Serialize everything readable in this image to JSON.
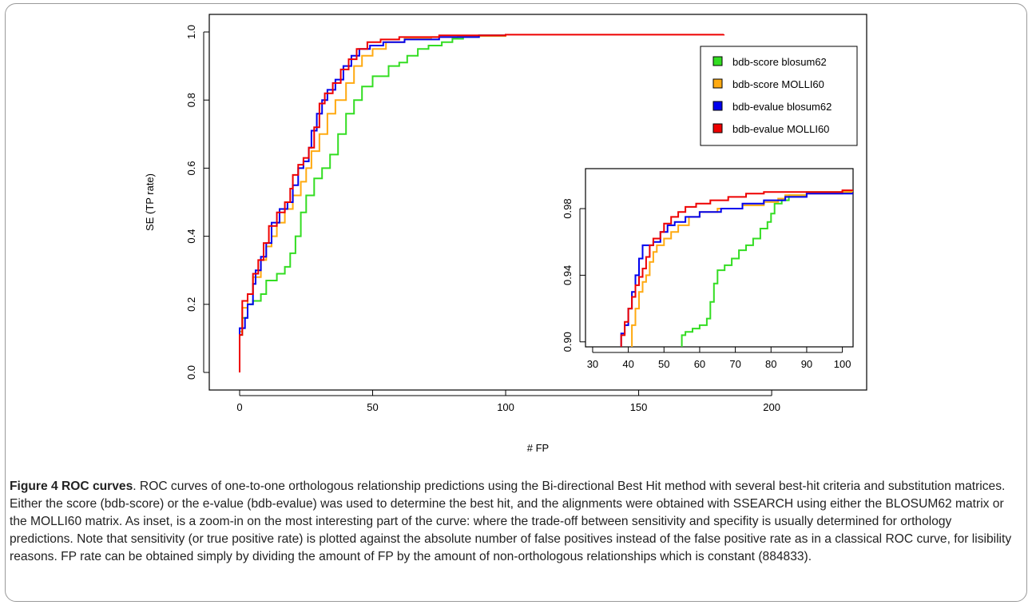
{
  "chart_data": [
    {
      "type": "line",
      "xlabel": "# FP",
      "ylabel": "SE (TP rate)",
      "xlim": [
        0,
        230
      ],
      "ylim": [
        0,
        1
      ],
      "x_ticks": [
        "0",
        "50",
        "100",
        "150",
        "200"
      ],
      "y_ticks": [
        "0.0",
        "0.2",
        "0.4",
        "0.6",
        "0.8",
        "1.0"
      ],
      "legend_position": "top-right",
      "series": [
        {
          "name": "bdb-score blosum62",
          "color": "#33dd22",
          "points": [
            [
              0,
              0
            ],
            [
              0,
              0.11
            ],
            [
              1,
              0.16
            ],
            [
              3,
              0.2
            ],
            [
              5,
              0.21
            ],
            [
              8,
              0.23
            ],
            [
              10,
              0.27
            ],
            [
              14,
              0.29
            ],
            [
              17,
              0.31
            ],
            [
              19,
              0.35
            ],
            [
              21,
              0.4
            ],
            [
              23,
              0.47
            ],
            [
              25,
              0.52
            ],
            [
              28,
              0.57
            ],
            [
              31,
              0.6
            ],
            [
              34,
              0.64
            ],
            [
              37,
              0.7
            ],
            [
              40,
              0.76
            ],
            [
              43,
              0.8
            ],
            [
              46,
              0.84
            ],
            [
              50,
              0.87
            ],
            [
              56,
              0.9
            ],
            [
              60,
              0.91
            ],
            [
              63,
              0.93
            ],
            [
              67,
              0.95
            ],
            [
              71,
              0.96
            ],
            [
              76,
              0.97
            ],
            [
              80,
              0.98
            ],
            [
              84,
              0.985
            ],
            [
              90,
              0.99
            ],
            [
              100,
              0.99
            ]
          ]
        },
        {
          "name": "bdb-score MOLLI60",
          "color": "#ffaa11",
          "points": [
            [
              0,
              0
            ],
            [
              0,
              0.12
            ],
            [
              1,
              0.19
            ],
            [
              3,
              0.23
            ],
            [
              5,
              0.28
            ],
            [
              8,
              0.33
            ],
            [
              10,
              0.37
            ],
            [
              12,
              0.4
            ],
            [
              14,
              0.44
            ],
            [
              17,
              0.48
            ],
            [
              20,
              0.52
            ],
            [
              23,
              0.56
            ],
            [
              25,
              0.6
            ],
            [
              27,
              0.65
            ],
            [
              30,
              0.7
            ],
            [
              33,
              0.76
            ],
            [
              36,
              0.8
            ],
            [
              40,
              0.85
            ],
            [
              43,
              0.9
            ],
            [
              46,
              0.93
            ],
            [
              50,
              0.95
            ],
            [
              55,
              0.97
            ],
            [
              62,
              0.98
            ],
            [
              72,
              0.985
            ],
            [
              82,
              0.988
            ],
            [
              100,
              0.99
            ]
          ]
        },
        {
          "name": "bdb-evalue blosum62",
          "color": "#0000ee",
          "points": [
            [
              0,
              0
            ],
            [
              0,
              0.13
            ],
            [
              2,
              0.16
            ],
            [
              3,
              0.2
            ],
            [
              5,
              0.26
            ],
            [
              6,
              0.3
            ],
            [
              8,
              0.34
            ],
            [
              10,
              0.38
            ],
            [
              12,
              0.44
            ],
            [
              15,
              0.48
            ],
            [
              18,
              0.5
            ],
            [
              20,
              0.55
            ],
            [
              22,
              0.6
            ],
            [
              24,
              0.62
            ],
            [
              26,
              0.66
            ],
            [
              27,
              0.71
            ],
            [
              29,
              0.76
            ],
            [
              31,
              0.8
            ],
            [
              33,
              0.83
            ],
            [
              36,
              0.86
            ],
            [
              39,
              0.9
            ],
            [
              42,
              0.93
            ],
            [
              45,
              0.95
            ],
            [
              49,
              0.96
            ],
            [
              54,
              0.97
            ],
            [
              62,
              0.978
            ],
            [
              75,
              0.985
            ],
            [
              90,
              0.99
            ],
            [
              100,
              0.99
            ]
          ]
        },
        {
          "name": "bdb-evalue MOLLI60",
          "color": "#ee0000",
          "points": [
            [
              0,
              0
            ],
            [
              0,
              0.11
            ],
            [
              1,
              0.21
            ],
            [
              3,
              0.23
            ],
            [
              5,
              0.29
            ],
            [
              7,
              0.33
            ],
            [
              9,
              0.38
            ],
            [
              11,
              0.43
            ],
            [
              14,
              0.47
            ],
            [
              17,
              0.5
            ],
            [
              19,
              0.54
            ],
            [
              20,
              0.58
            ],
            [
              22,
              0.61
            ],
            [
              24,
              0.63
            ],
            [
              26,
              0.66
            ],
            [
              28,
              0.72
            ],
            [
              30,
              0.79
            ],
            [
              32,
              0.82
            ],
            [
              35,
              0.85
            ],
            [
              38,
              0.89
            ],
            [
              41,
              0.92
            ],
            [
              44,
              0.95
            ],
            [
              48,
              0.97
            ],
            [
              53,
              0.978
            ],
            [
              60,
              0.985
            ],
            [
              75,
              0.99
            ],
            [
              100,
              0.992
            ],
            [
              182,
              0.993
            ]
          ]
        }
      ]
    },
    {
      "type": "line",
      "xlabel": "",
      "ylabel": "",
      "xlim": [
        28,
        103
      ],
      "ylim": [
        0.897,
        1.004
      ],
      "x_ticks": [
        "30",
        "40",
        "50",
        "60",
        "70",
        "80",
        "90",
        "100"
      ],
      "y_ticks": [
        "0.90",
        "0.94",
        "0.98"
      ],
      "series": [
        {
          "name": "bdb-score blosum62",
          "color": "#33dd22",
          "points": [
            [
              55,
              0.895
            ],
            [
              55,
              0.904
            ],
            [
              56,
              0.906
            ],
            [
              58,
              0.908
            ],
            [
              60,
              0.91
            ],
            [
              62,
              0.914
            ],
            [
              63,
              0.924
            ],
            [
              64,
              0.935
            ],
            [
              65,
              0.943
            ],
            [
              67,
              0.946
            ],
            [
              69,
              0.95
            ],
            [
              71,
              0.955
            ],
            [
              73,
              0.958
            ],
            [
              75,
              0.962
            ],
            [
              77,
              0.968
            ],
            [
              79,
              0.972
            ],
            [
              80,
              0.977
            ],
            [
              81,
              0.983
            ],
            [
              83,
              0.985
            ],
            [
              85,
              0.988
            ],
            [
              90,
              0.99
            ],
            [
              103,
              0.991
            ]
          ]
        },
        {
          "name": "bdb-score MOLLI60",
          "color": "#ffaa11",
          "points": [
            [
              41,
              0.895
            ],
            [
              41,
              0.91
            ],
            [
              42,
              0.92
            ],
            [
              43,
              0.93
            ],
            [
              44,
              0.936
            ],
            [
              45,
              0.94
            ],
            [
              46,
              0.948
            ],
            [
              47,
              0.954
            ],
            [
              48,
              0.958
            ],
            [
              50,
              0.962
            ],
            [
              52,
              0.966
            ],
            [
              54,
              0.97
            ],
            [
              57,
              0.975
            ],
            [
              60,
              0.978
            ],
            [
              65,
              0.98
            ],
            [
              72,
              0.982
            ],
            [
              78,
              0.984
            ],
            [
              82,
              0.986
            ],
            [
              84,
              0.988
            ],
            [
              90,
              0.989
            ],
            [
              100,
              0.99
            ],
            [
              103,
              0.99
            ]
          ]
        },
        {
          "name": "bdb-evalue blosum62",
          "color": "#0000ee",
          "points": [
            [
              37,
              0.895
            ],
            [
              38,
              0.905
            ],
            [
              39,
              0.91
            ],
            [
              40,
              0.92
            ],
            [
              41,
              0.93
            ],
            [
              42,
              0.94
            ],
            [
              43,
              0.95
            ],
            [
              44,
              0.958
            ],
            [
              46,
              0.958
            ],
            [
              47,
              0.96
            ],
            [
              49,
              0.966
            ],
            [
              51,
              0.97
            ],
            [
              53,
              0.972
            ],
            [
              56,
              0.975
            ],
            [
              60,
              0.978
            ],
            [
              66,
              0.98
            ],
            [
              72,
              0.983
            ],
            [
              78,
              0.985
            ],
            [
              84,
              0.987
            ],
            [
              90,
              0.989
            ],
            [
              103,
              0.99
            ]
          ]
        },
        {
          "name": "bdb-evalue MOLLI60",
          "color": "#ee0000",
          "points": [
            [
              38,
              0.895
            ],
            [
              38,
              0.904
            ],
            [
              39,
              0.912
            ],
            [
              40,
              0.92
            ],
            [
              41,
              0.927
            ],
            [
              42,
              0.934
            ],
            [
              43,
              0.939
            ],
            [
              44,
              0.944
            ],
            [
              45,
              0.951
            ],
            [
              46,
              0.958
            ],
            [
              47,
              0.962
            ],
            [
              49,
              0.966
            ],
            [
              50,
              0.971
            ],
            [
              52,
              0.975
            ],
            [
              54,
              0.978
            ],
            [
              56,
              0.981
            ],
            [
              59,
              0.983
            ],
            [
              63,
              0.985
            ],
            [
              68,
              0.987
            ],
            [
              73,
              0.989
            ],
            [
              78,
              0.99
            ],
            [
              100,
              0.991
            ],
            [
              103,
              0.991
            ]
          ]
        }
      ]
    }
  ],
  "caption": {
    "title": "Figure 4 ROC curves",
    "text": ". ROC curves of one-to-one orthologous relationship predictions using the Bi-directional Best Hit method with several best-hit criteria and substitution matrices. Either the score (bdb-score) or the e-value (bdb-evalue) was used to determine the best hit, and the alignments were obtained with SSEARCH using either the BLOSUM62 matrix or the MOLLI60 matrix. As inset, is a zoom-in on the most interesting part of the curve: where the trade-off between sensitivity and specifity is usually determined for orthology predictions. Note that sensitivity (or true positive rate) is plotted against the absolute number of false positives instead of the false positive rate as in a classical ROC curve, for lisibility reasons. FP rate can be obtained simply by dividing the amount of FP by the amount of non-orthologous relationships which is constant (884833)."
  }
}
